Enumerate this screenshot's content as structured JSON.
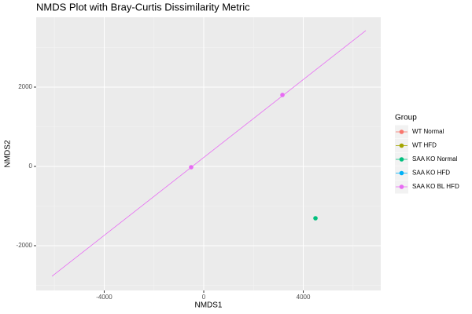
{
  "chart_data": {
    "type": "scatter",
    "title": "NMDS Plot with Bray-Curtis Dissimilarity Metric",
    "x_label": "NMDS1",
    "y_label": "NMDS2",
    "legend_title": "Group",
    "legend_position": "right",
    "xlim": [
      -6734,
      7113
    ],
    "ylim": [
      -3129,
      3762
    ],
    "xticks": [
      -4000,
      0,
      4000
    ],
    "yticks": [
      -2000,
      0,
      2000
    ],
    "xminor": [
      -6000,
      -2000,
      2000,
      6000
    ],
    "yminor": [
      -3000,
      -1000,
      1000,
      3000
    ],
    "grid": true,
    "series": [
      {
        "name": "WT Normal",
        "color": "#F8766D",
        "x": [],
        "y": []
      },
      {
        "name": "WT HFD",
        "color": "#A3A500",
        "x": [],
        "y": []
      },
      {
        "name": "SAA KO Normal",
        "color": "#00BF7D",
        "x": [
          4490
        ],
        "y": [
          -1307
        ]
      },
      {
        "name": "SAA KO HFD",
        "color": "#00B0F6",
        "x": [],
        "y": []
      },
      {
        "name": "SAA KO BL HFD",
        "color": "#E76BF3",
        "x": [
          -506,
          3162
        ],
        "y": [
          -20,
          1802
        ],
        "fit_x": [
          -6100,
          6513
        ],
        "fit_y": [
          -2772,
          3426
        ]
      }
    ]
  }
}
